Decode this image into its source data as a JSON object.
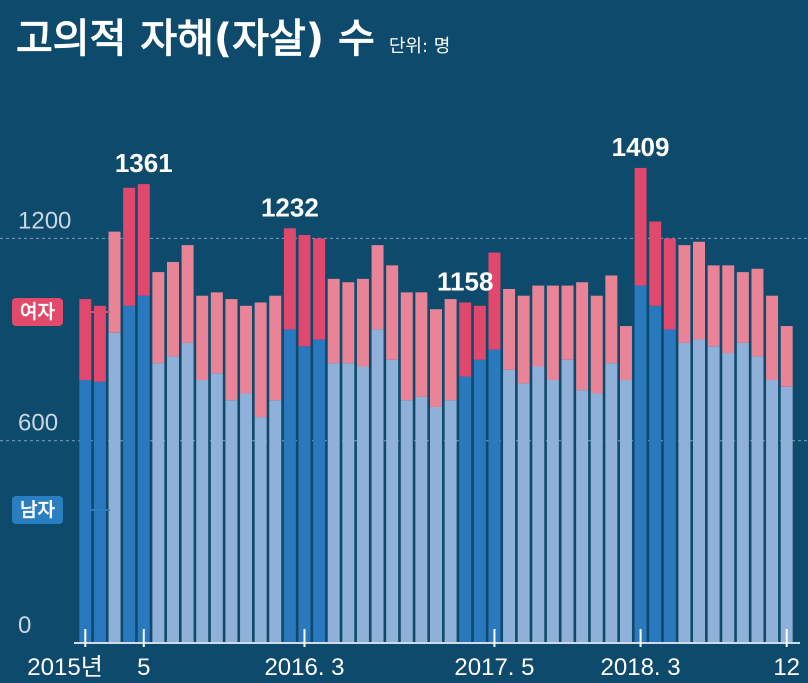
{
  "title": "고의적 자해(자살) 수",
  "unit": "단위: 명",
  "colors": {
    "background": "#0d4a6c",
    "male_light": "#8fb0d8",
    "male_dark": "#2a79be",
    "female_light": "#e88496",
    "female_dark": "#e1486d"
  },
  "chart_data": {
    "type": "bar",
    "stacked": true,
    "ylim": [
      0,
      1560
    ],
    "yticks": [
      "0",
      "600",
      "1200"
    ],
    "grid": "dashed lines at 600 and 1200",
    "x_labels": [
      "2015년",
      "5",
      "2016. 3",
      "2017. 5",
      "2018. 3",
      "12"
    ],
    "annotations": [
      "1361",
      "1409",
      "1232",
      "1158"
    ],
    "series": [
      {
        "name": "남자",
        "values": [
          780,
          775,
          920,
          1000,
          1030,
          830,
          850,
          890,
          780,
          800,
          720,
          740,
          670,
          720,
          930,
          880,
          900,
          830,
          830,
          820,
          930,
          840,
          720,
          730,
          700,
          720,
          790,
          840,
          870,
          810,
          770,
          820,
          780,
          840,
          750,
          740,
          830,
          780,
          1060,
          1000,
          930,
          890,
          900,
          880,
          860,
          890,
          850,
          780,
          760
        ]
      },
      {
        "name": "여자",
        "values": [
          240,
          225,
          300,
          350,
          331,
          270,
          280,
          290,
          250,
          240,
          300,
          260,
          340,
          310,
          300,
          330,
          300,
          250,
          240,
          260,
          250,
          280,
          320,
          310,
          290,
          300,
          220,
          160,
          288,
          240,
          260,
          240,
          280,
          220,
          320,
          290,
          260,
          160,
          349,
          250,
          270,
          290,
          290,
          240,
          260,
          210,
          260,
          250,
          180
        ]
      }
    ],
    "highlight_color_index": [
      1,
      1,
      0,
      1,
      1,
      0,
      0,
      0,
      0,
      0,
      0,
      0,
      0,
      0,
      1,
      1,
      1,
      0,
      0,
      0,
      0,
      0,
      0,
      0,
      0,
      0,
      1,
      1,
      1,
      0,
      0,
      0,
      0,
      0,
      0,
      0,
      0,
      0,
      1,
      1,
      1,
      0,
      0,
      0,
      0,
      0,
      0,
      0,
      0
    ]
  }
}
